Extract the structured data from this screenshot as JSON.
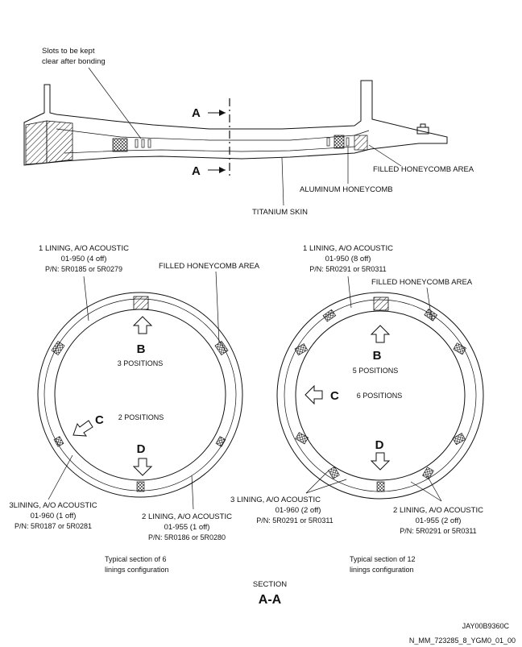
{
  "top_view": {
    "note_line1": "Slots to be kept",
    "note_line2": "clear after bonding",
    "section_marker_upper": "A",
    "section_marker_lower": "A",
    "label_filled_honeycomb": "FILLED HONEYCOMB AREA",
    "label_aluminum_honeycomb": "ALUMINUM HONEYCOMB",
    "label_titanium_skin": "TITANIUM SKIN"
  },
  "left_section": {
    "lining1": [
      "1 LINING, A/O ACOUSTIC",
      "01-950 (4 off)",
      "P/N: 5R0185 or 5R0279"
    ],
    "filled_area": "FILLED HONEYCOMB AREA",
    "b_label": "B",
    "b_positions": "3 POSITIONS",
    "c_label": "C",
    "c_positions": "2 POSITIONS",
    "d_label": "D",
    "lining3": [
      "3LINING, A/O ACOUSTIC",
      "01-960 (1 off)",
      "P/N: 5R0187 or 5R0281"
    ],
    "lining2": [
      "2 LINING, A/O ACOUSTIC",
      "01-955 (1 off)",
      "P/N: 5R0186 or 5R0280"
    ],
    "caption": [
      "Typical section of 6",
      "linings configuration"
    ]
  },
  "right_section": {
    "lining1": [
      "1 LINING, A/O ACOUSTIC",
      "01-950 (8 off)",
      "P/N: 5R0291 or 5R0311"
    ],
    "filled_area": "FILLED HONEYCOMB AREA",
    "b_label": "B",
    "b_positions": "5 POSITIONS",
    "c_label": "C",
    "c_positions": "6 POSITIONS",
    "d_label": "D",
    "lining3": [
      "3 LINING, A/O ACOUSTIC",
      "01-960 (2 off)",
      "P/N: 5R0291 or 5R0311"
    ],
    "lining2": [
      "2 LINING, A/O ACOUSTIC",
      "01-955 (2 off)",
      "P/N: 5R0291 or 5R0311"
    ],
    "caption": [
      "Typical section of 12",
      "linings configuration"
    ]
  },
  "section_title": "SECTION",
  "section_name": "A-A",
  "figure_code": "JAY00B9360C",
  "document_code": "N_MM_723285_8_YGM0_01_00"
}
